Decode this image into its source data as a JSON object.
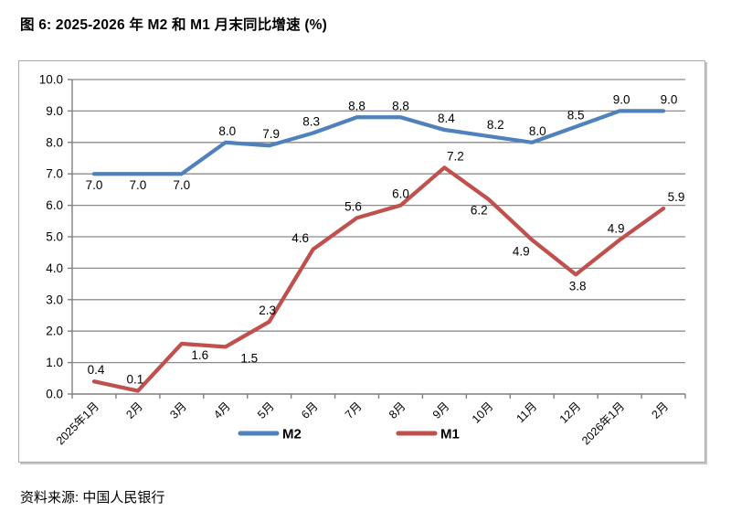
{
  "figure": {
    "title": "图 6: 2025-2026 年 M2 和 M1 月末同比增速 (%)",
    "source": "资料来源: 中国人民银行"
  },
  "colors": {
    "m2_line": "#4F81BD",
    "m1_line": "#C0504D",
    "gridline": "#8C8C8C",
    "axis": "#7F7F7F",
    "label_text": "#000000",
    "chart_border": "#ABABAB"
  },
  "chart_data": {
    "type": "line",
    "title": "图 6: 2025-2026 年 M2 和 M1 月末同比增速 (%)",
    "categories": [
      "2025年1月",
      "2月",
      "3月",
      "4月",
      "5月",
      "6月",
      "7月",
      "8月",
      "9月",
      "10月",
      "11月",
      "12月",
      "2026年1月",
      "2月"
    ],
    "series": [
      {
        "name": "M2",
        "color": "#4F81BD",
        "values": [
          7.0,
          7.0,
          7.0,
          8.0,
          7.9,
          8.3,
          8.8,
          8.8,
          8.4,
          8.2,
          8.0,
          8.5,
          9.0,
          9.0
        ],
        "label_side": [
          "below",
          "below",
          "below",
          "above",
          "above",
          "above",
          "above",
          "above",
          "above",
          "above",
          "above",
          "above",
          "above",
          "above"
        ],
        "label_dx": [
          0,
          0,
          0,
          2,
          2,
          -2,
          0,
          0,
          2,
          8,
          6,
          0,
          2,
          6
        ]
      },
      {
        "name": "M1",
        "color": "#C0504D",
        "values": [
          0.4,
          0.1,
          1.6,
          1.5,
          2.3,
          4.6,
          5.6,
          6.0,
          7.2,
          6.2,
          4.9,
          3.8,
          4.9,
          5.9
        ],
        "label_side": [
          "above",
          "above",
          "below",
          "below",
          "above",
          "above",
          "above",
          "above",
          "above",
          "below",
          "below",
          "below",
          "above",
          "above"
        ],
        "label_dx": [
          2,
          -3,
          20,
          26,
          -2,
          -14,
          -4,
          0,
          12,
          -10,
          -12,
          2,
          -4,
          14
        ]
      }
    ],
    "ylim": [
      0,
      10
    ],
    "ytick_step": 1.0,
    "value_decimals": 1,
    "grid": true,
    "legend_position": "bottom",
    "xlabel": "",
    "ylabel": ""
  }
}
